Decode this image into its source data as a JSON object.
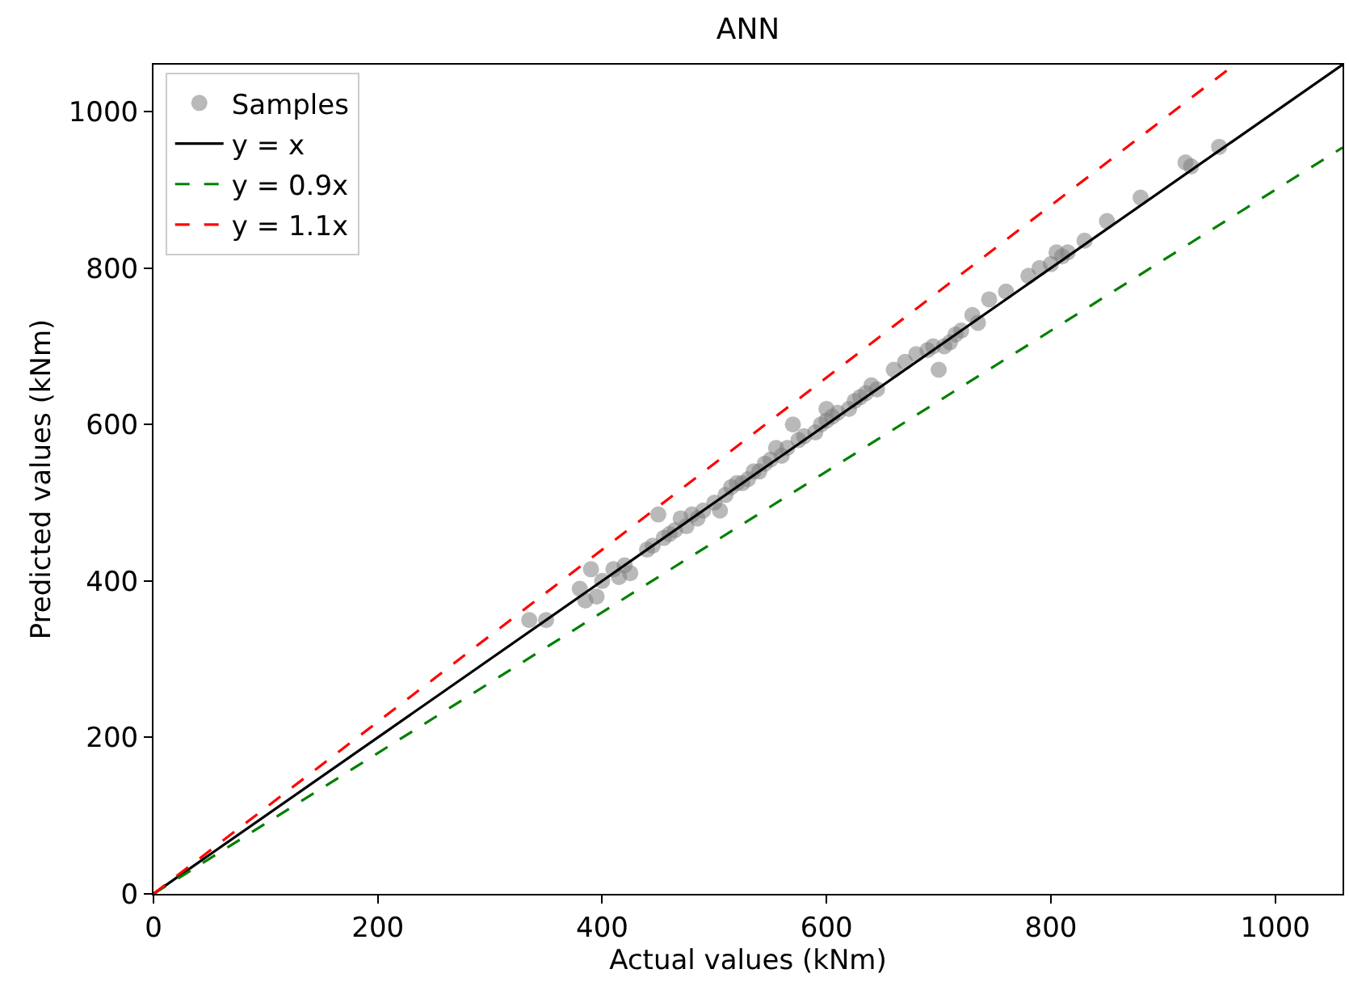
{
  "chart_data": {
    "type": "scatter",
    "title": "ANN",
    "xlabel": "Actual values (kNm)",
    "ylabel": "Predicted values (kNm)",
    "xlim": [
      0,
      1060
    ],
    "ylim": [
      0,
      1060
    ],
    "xticks": [
      0,
      200,
      400,
      600,
      800,
      1000
    ],
    "yticks": [
      0,
      200,
      400,
      600,
      800,
      1000
    ],
    "legend": "top left",
    "series": [
      {
        "name": "Samples",
        "marker": "circle",
        "color": "#808080",
        "x": [
          335,
          350,
          380,
          385,
          390,
          395,
          400,
          410,
          415,
          420,
          425,
          440,
          445,
          450,
          455,
          460,
          465,
          470,
          475,
          480,
          485,
          490,
          500,
          505,
          510,
          515,
          520,
          525,
          530,
          535,
          540,
          545,
          550,
          555,
          560,
          565,
          570,
          575,
          580,
          590,
          595,
          600,
          600,
          605,
          610,
          620,
          625,
          630,
          635,
          640,
          645,
          660,
          670,
          680,
          690,
          695,
          700,
          705,
          710,
          715,
          720,
          730,
          735,
          745,
          760,
          780,
          790,
          800,
          805,
          810,
          815,
          830,
          850,
          880,
          920,
          925,
          950
        ],
        "values": [
          350,
          350,
          390,
          375,
          415,
          380,
          400,
          415,
          405,
          420,
          410,
          440,
          445,
          485,
          455,
          460,
          465,
          480,
          470,
          485,
          480,
          490,
          500,
          490,
          510,
          520,
          525,
          525,
          530,
          540,
          540,
          550,
          555,
          570,
          560,
          570,
          600,
          580,
          585,
          590,
          600,
          605,
          620,
          610,
          615,
          620,
          630,
          635,
          640,
          650,
          645,
          670,
          680,
          690,
          695,
          700,
          670,
          700,
          705,
          715,
          720,
          740,
          730,
          760,
          770,
          790,
          800,
          805,
          820,
          815,
          820,
          835,
          860,
          890,
          935,
          930,
          955
        ]
      },
      {
        "name": "y = x",
        "type": "line",
        "color": "#000000",
        "line_style": "solid",
        "x": [
          0,
          1060
        ],
        "values": [
          0,
          1060
        ]
      },
      {
        "name": "y = 0.9x",
        "type": "line",
        "color": "#008000",
        "line_style": "dashed",
        "x": [
          0,
          1060
        ],
        "values": [
          0,
          954
        ]
      },
      {
        "name": "y = 1.1x",
        "type": "line",
        "color": "#ff0000",
        "line_style": "dashed",
        "x": [
          0,
          960
        ],
        "values": [
          0,
          1056
        ]
      }
    ]
  }
}
